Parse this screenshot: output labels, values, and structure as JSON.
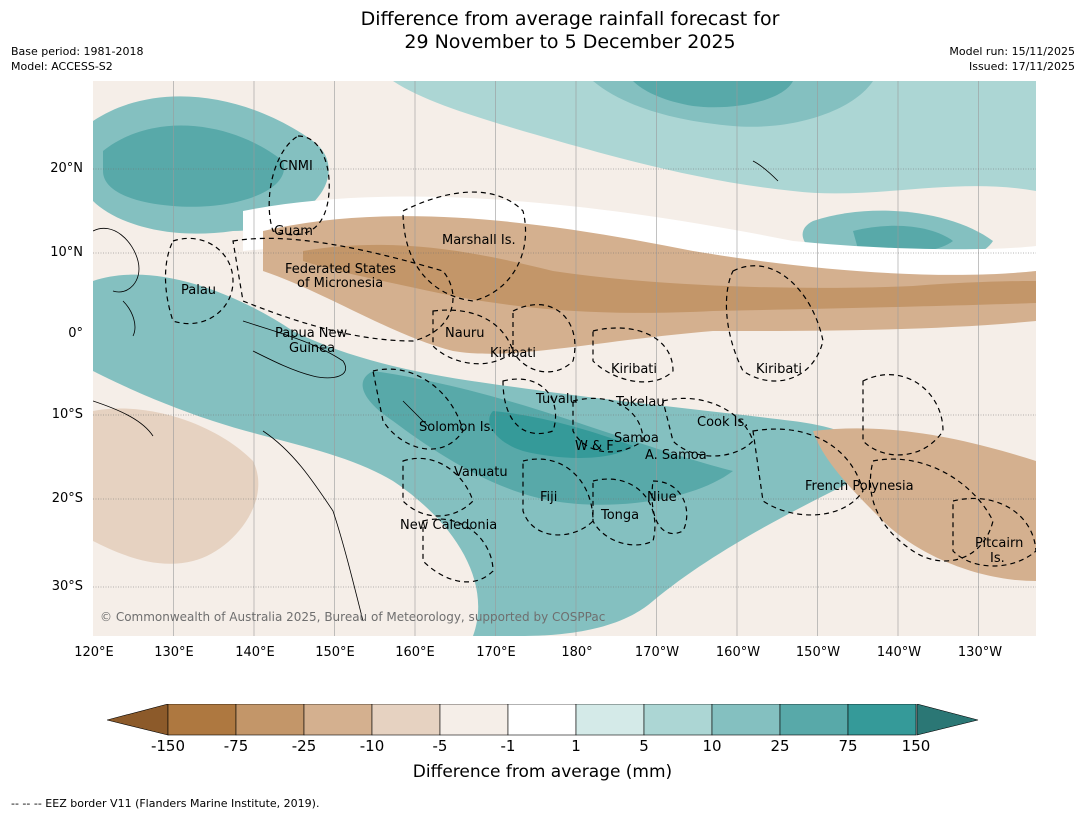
{
  "title_line1": "Difference from average rainfall forecast for",
  "title_line2": "29 November to 5 December 2025",
  "meta": {
    "base_period": "Base period: 1981-2018",
    "model": "Model: ACCESS-S2",
    "model_run": "Model run: 15/11/2025",
    "issued": "Issued: 17/11/2025"
  },
  "lat_ticks": [
    "20°N",
    "10°N",
    "0°",
    "10°S",
    "20°S",
    "30°S"
  ],
  "lon_ticks": [
    "120°E",
    "130°E",
    "140°E",
    "150°E",
    "160°E",
    "170°E",
    "180°",
    "170°W",
    "160°W",
    "150°W",
    "140°W",
    "130°W"
  ],
  "places": {
    "cnmi": "CNMI",
    "guam": "Guam",
    "marshall": "Marshall Is.",
    "fsm1": "Federated States",
    "fsm2": "of Micronesia",
    "palau": "Palau",
    "png1": "Papua New",
    "png2": "Guinea",
    "nauru": "Nauru",
    "kiribati_w": "Kiribati",
    "kiribati_c": "Kiribati",
    "kiribati_e": "Kiribati",
    "tuvalu": "Tuvalu",
    "tokelau": "Tokelau",
    "cook": "Cook Is.",
    "solomon": "Solomon Is.",
    "wf": "W & F",
    "samoa": "Samoa",
    "asamoa": "A. Samoa",
    "vanuatu": "Vanuatu",
    "fiji": "Fiji",
    "niue": "Niue",
    "tonga": "Tonga",
    "frpoly": "French Polynesia",
    "newcal": "New Caledonia",
    "pitcairn1": "Pitcairn",
    "pitcairn2": "Is."
  },
  "colorbar": {
    "labels": [
      "-150",
      "-75",
      "-25",
      "-10",
      "-5",
      "-1",
      "1",
      "5",
      "10",
      "25",
      "75",
      "150"
    ],
    "colors": [
      "#8c5a2a",
      "#ae7840",
      "#c39669",
      "#d4b08f",
      "#e6d2c1",
      "#f5eee8",
      "#ffffff",
      "#d4eae8",
      "#acd6d4",
      "#84c0c0",
      "#58a9a9",
      "#359a99",
      "#2b7775"
    ],
    "title": "Difference from average (mm)"
  },
  "copyright": "© Commonwealth of Australia 2025, Bureau of Meteorology, supported by COSPPac",
  "footnote": "--  --  -- EEZ border V11 (Flanders Marine Institute, 2019)."
}
